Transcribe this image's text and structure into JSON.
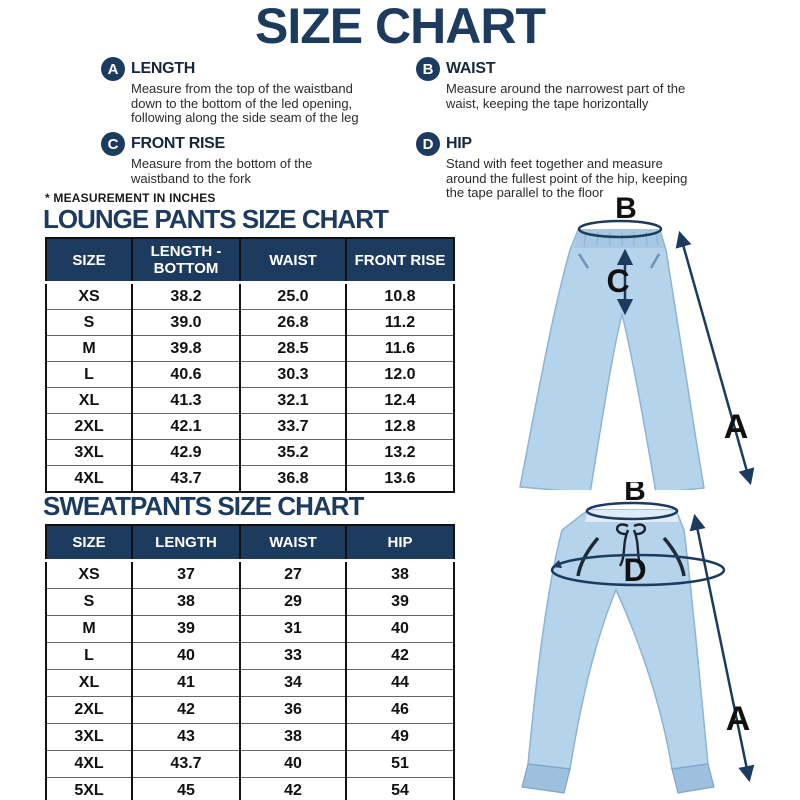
{
  "title": "SIZE CHART",
  "note": "* MEASUREMENT IN INCHES",
  "definitions": [
    {
      "letter": "A",
      "term": "LENGTH",
      "desc": "Measure from the top of the waistband down to the bottom of the led opening, following along the side seam of the leg"
    },
    {
      "letter": "B",
      "term": "WAIST",
      "desc": "Measure around the narrowest part of the waist, keeping the tape horizontally"
    },
    {
      "letter": "C",
      "term": "FRONT RISE",
      "desc": "Measure from the bottom of the waistband to the fork"
    },
    {
      "letter": "D",
      "term": "HIP",
      "desc": "Stand with feet together and measure around the fullest point of the hip, keeping the tape parallel to the floor"
    }
  ],
  "chart_data": [
    {
      "type": "table",
      "title": "LOUNGE PANTS SIZE CHART",
      "units": "inches",
      "columns": [
        "SIZE",
        "LENGTH - BOTTOM",
        "WAIST",
        "FRONT RISE"
      ],
      "rows": [
        [
          "XS",
          "38.2",
          "25.0",
          "10.8"
        ],
        [
          "S",
          "39.0",
          "26.8",
          "11.2"
        ],
        [
          "M",
          "39.8",
          "28.5",
          "11.6"
        ],
        [
          "L",
          "40.6",
          "30.3",
          "12.0"
        ],
        [
          "XL",
          "41.3",
          "32.1",
          "12.4"
        ],
        [
          "2XL",
          "42.1",
          "33.7",
          "12.8"
        ],
        [
          "3XL",
          "42.9",
          "35.2",
          "13.2"
        ],
        [
          "4XL",
          "43.7",
          "36.8",
          "13.6"
        ]
      ]
    },
    {
      "type": "table",
      "title": "SWEATPANTS SIZE CHART",
      "units": "inches",
      "columns": [
        "SIZE",
        "LENGTH",
        "WAIST",
        "HIP"
      ],
      "rows": [
        [
          "XS",
          "37",
          "27",
          "38"
        ],
        [
          "S",
          "38",
          "29",
          "39"
        ],
        [
          "M",
          "39",
          "31",
          "40"
        ],
        [
          "L",
          "40",
          "33",
          "42"
        ],
        [
          "XL",
          "41",
          "34",
          "44"
        ],
        [
          "2XL",
          "42",
          "36",
          "46"
        ],
        [
          "3XL",
          "43",
          "38",
          "49"
        ],
        [
          "4XL",
          "43.7",
          "40",
          "51"
        ],
        [
          "5XL",
          "45",
          "42",
          "54"
        ]
      ]
    }
  ],
  "illustrations": {
    "lounge": {
      "waist_label": "B",
      "front_rise_label": "C",
      "length_label": "A"
    },
    "sweat": {
      "waist_label": "B",
      "hip_label": "D",
      "length_label": "A"
    }
  },
  "colors": {
    "navy": "#1c3b5e",
    "text_black": "#1a1a1a",
    "pants_blue": "#b5d3ea",
    "pants_blue_dark": "#9cc0dd",
    "background": "#ffffff"
  }
}
